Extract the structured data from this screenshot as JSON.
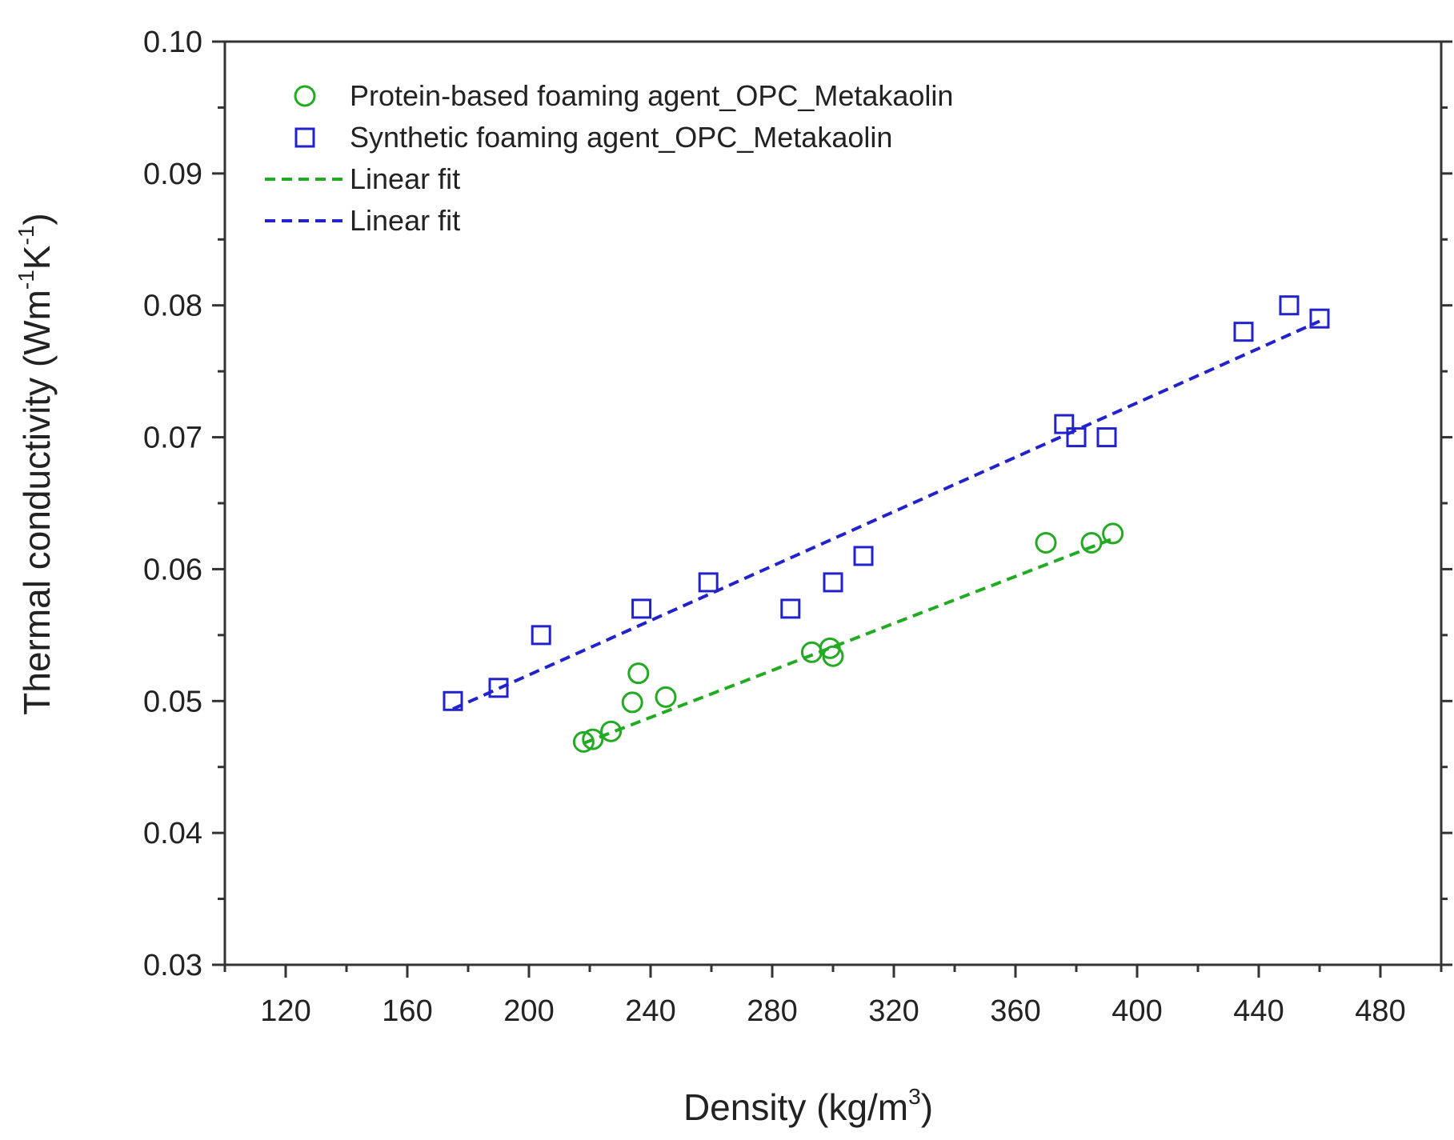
{
  "chart_data": {
    "type": "scatter",
    "xlabel": "Density (kg/m3)",
    "xlabel_parts": {
      "main": "Density (kg/m",
      "sup": "3",
      "close": ")"
    },
    "ylabel": "Thermal conductivity (Wm-1K-1)",
    "ylabel_parts": {
      "main": "Thermal conductivity (Wm",
      "sup1": "-1",
      "mid": "K",
      "sup2": "-1",
      "close": ")"
    },
    "xlim": [
      100,
      500
    ],
    "ylim": [
      0.03,
      0.1
    ],
    "xticks": [
      120,
      160,
      200,
      240,
      280,
      320,
      360,
      400,
      440,
      480
    ],
    "yticks": [
      0.03,
      0.04,
      0.05,
      0.06,
      0.07,
      0.08,
      0.09,
      0.1
    ],
    "ytick_labels": [
      "0.03",
      "0.04",
      "0.05",
      "0.06",
      "0.07",
      "0.08",
      "0.09",
      "0.10"
    ],
    "grid": false,
    "legend_position": "top-left",
    "series": [
      {
        "name": "Protein-based foaming agent_OPC_Metakaolin",
        "marker": "circle",
        "color": "#22aa22",
        "points": [
          [
            218,
            0.0469
          ],
          [
            221,
            0.0471
          ],
          [
            227,
            0.0477
          ],
          [
            234,
            0.0499
          ],
          [
            236,
            0.0521
          ],
          [
            245,
            0.0503
          ],
          [
            293,
            0.0537
          ],
          [
            299,
            0.054
          ],
          [
            300,
            0.0534
          ],
          [
            370,
            0.062
          ],
          [
            385,
            0.062
          ],
          [
            392,
            0.0627
          ]
        ]
      },
      {
        "name": "Synthetic foaming agent_OPC_Metakaolin",
        "marker": "square",
        "color": "#2222cc",
        "points": [
          [
            175,
            0.05
          ],
          [
            190,
            0.051
          ],
          [
            204,
            0.055
          ],
          [
            237,
            0.057
          ],
          [
            259,
            0.059
          ],
          [
            286,
            0.057
          ],
          [
            300,
            0.059
          ],
          [
            310,
            0.061
          ],
          [
            376,
            0.071
          ],
          [
            380,
            0.07
          ],
          [
            390,
            0.07
          ],
          [
            435,
            0.078
          ],
          [
            450,
            0.08
          ],
          [
            460,
            0.079
          ]
        ]
      }
    ],
    "fits": [
      {
        "name": "Linear fit",
        "style": "dashed",
        "color": "#22aa22",
        "x": [
          218,
          392
        ],
        "y": [
          0.0468,
          0.0623
        ]
      },
      {
        "name": "Linear fit",
        "style": "dashed",
        "color": "#2222cc",
        "x": [
          175,
          460
        ],
        "y": [
          0.0494,
          0.0788
        ]
      }
    ]
  }
}
